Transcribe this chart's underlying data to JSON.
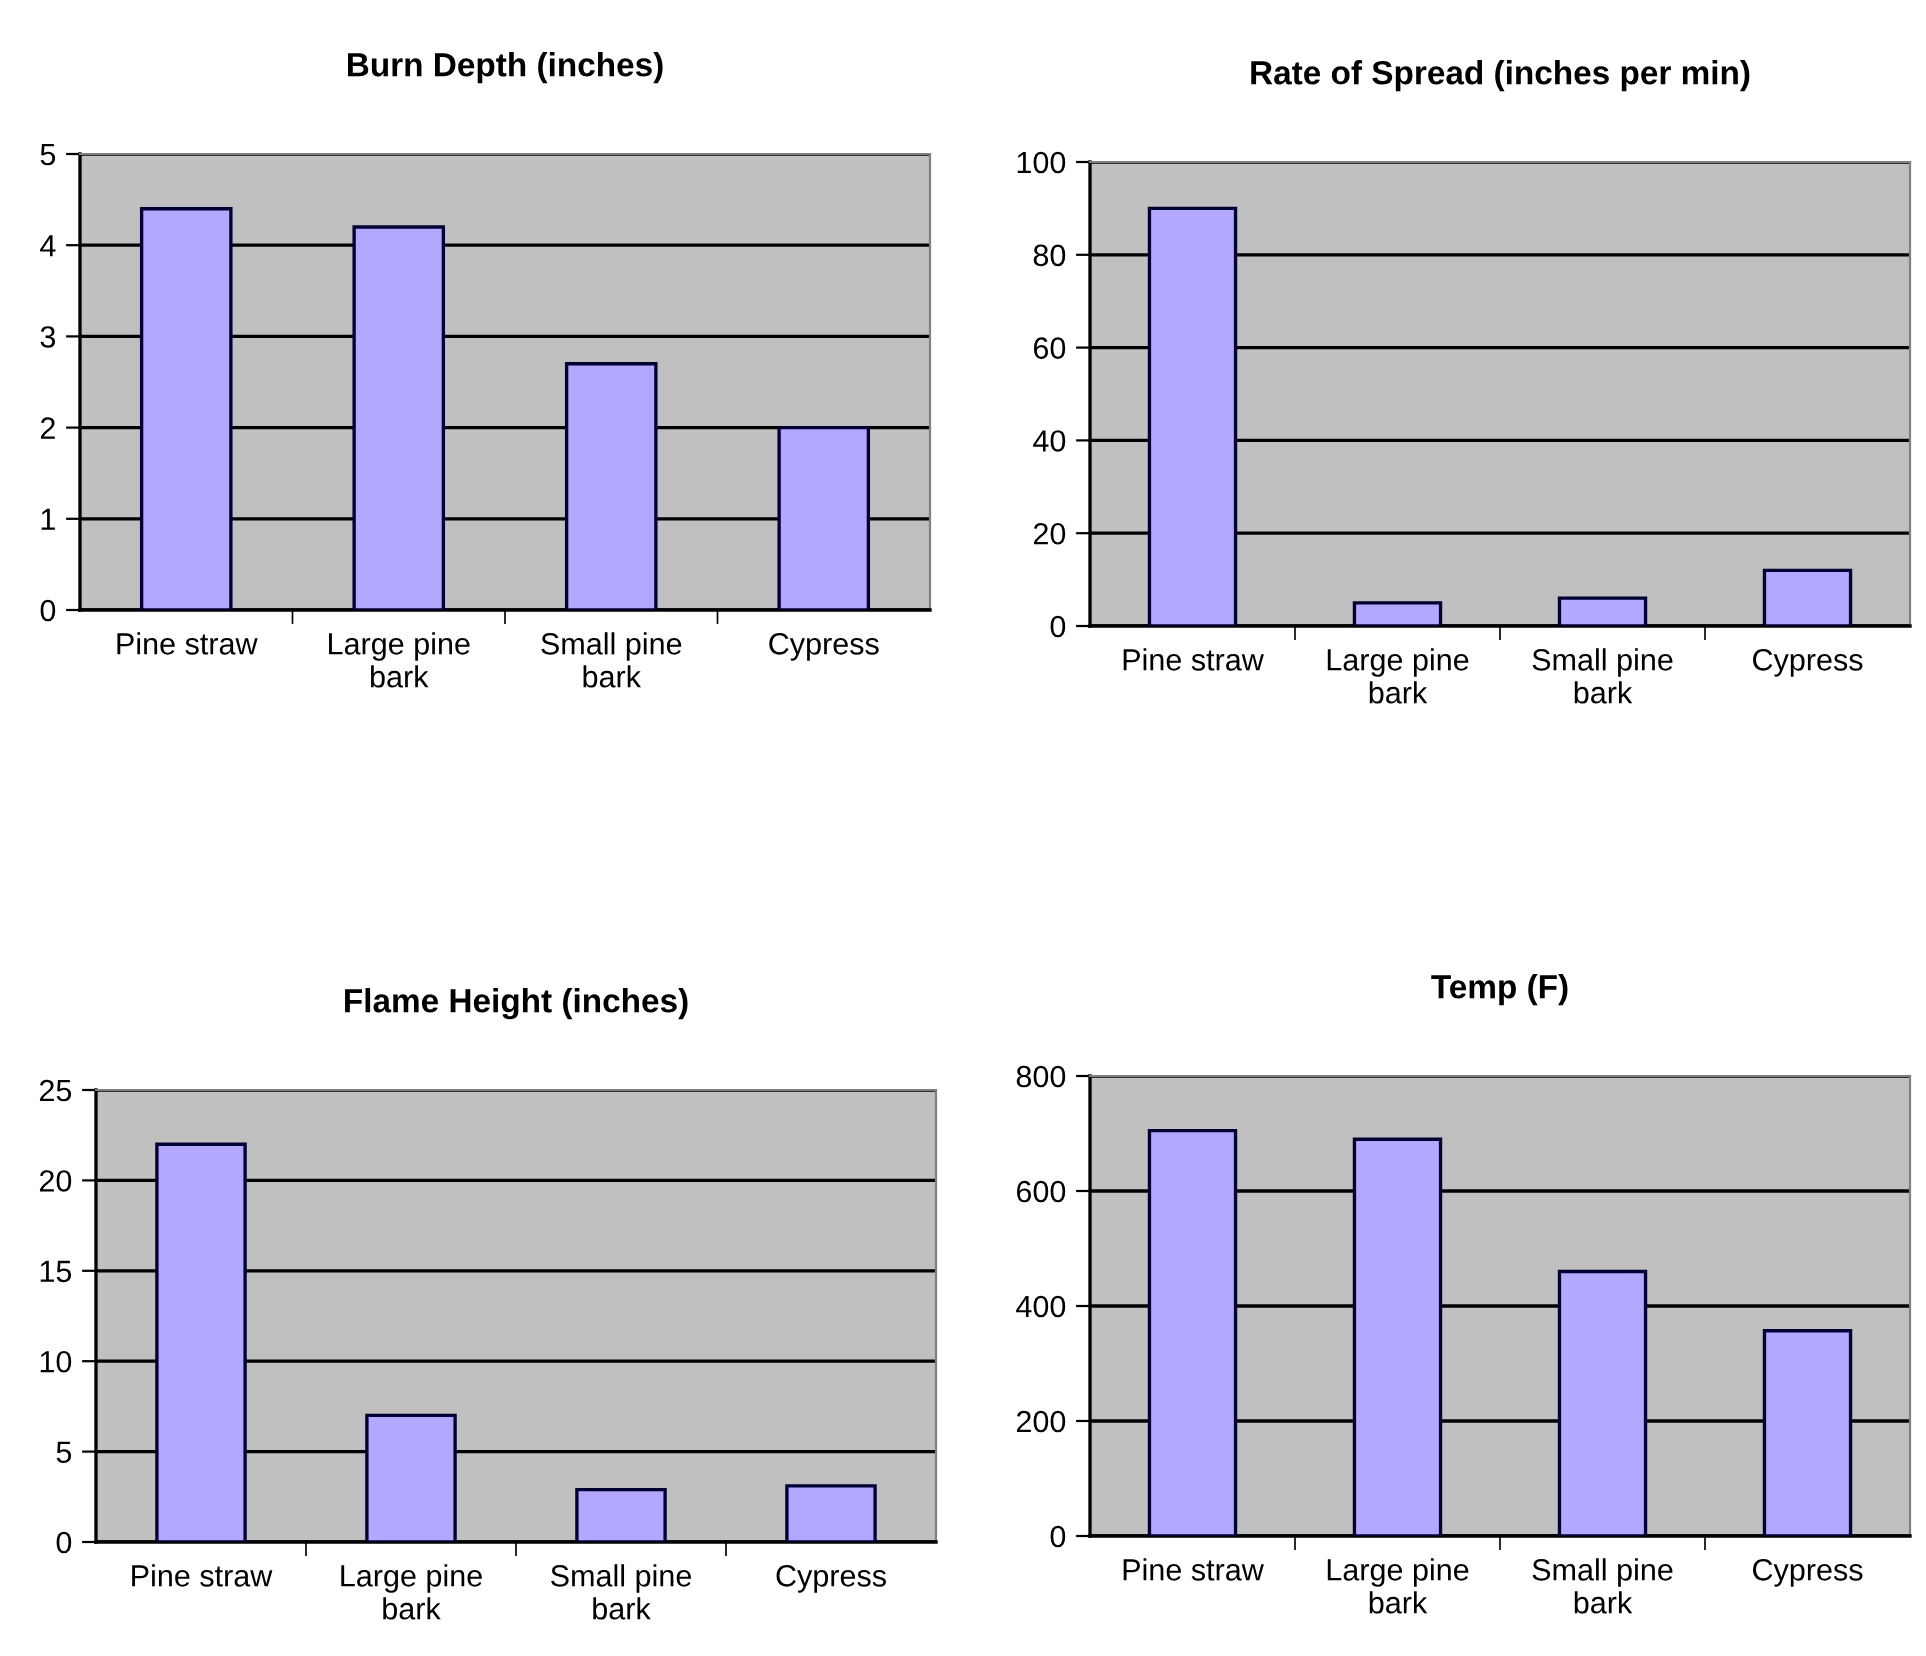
{
  "chart_data": [
    {
      "type": "bar",
      "title": "Burn Depth (inches)",
      "categories": [
        "Pine straw",
        "Large pine\nbark",
        "Small pine\nbark",
        "Cypress"
      ],
      "values": [
        4.4,
        4.2,
        2.7,
        2.0
      ],
      "color": "#b3a8ff",
      "ylim": [
        0,
        5
      ],
      "yticks": [
        0,
        1,
        2,
        3,
        4,
        5
      ],
      "grid": "y"
    },
    {
      "type": "bar",
      "title": "Rate of Spread (inches per min)",
      "categories": [
        "Pine straw",
        "Large pine\nbark",
        "Small pine\nbark",
        "Cypress"
      ],
      "values": [
        90,
        5,
        6,
        12
      ],
      "color": "#b3a8ff",
      "ylim": [
        0,
        100
      ],
      "yticks": [
        0,
        20,
        40,
        60,
        80,
        100
      ],
      "grid": "y"
    },
    {
      "type": "bar",
      "title": "Flame Height (inches)",
      "categories": [
        "Pine straw",
        "Large pine\nbark",
        "Small pine\nbark",
        "Cypress"
      ],
      "values": [
        22,
        7,
        2.9,
        3.1
      ],
      "color": "#b3a8ff",
      "ylim": [
        0,
        25
      ],
      "yticks": [
        0,
        5,
        10,
        15,
        20,
        25
      ],
      "grid": "y"
    },
    {
      "type": "bar",
      "title": "Temp (F)",
      "categories": [
        "Pine straw",
        "Large pine\nbark",
        "Small pine\nbark",
        "Cypress"
      ],
      "values": [
        705,
        690,
        460,
        357
      ],
      "color": "#b3a8ff",
      "ylim": [
        0,
        800
      ],
      "yticks": [
        0,
        200,
        400,
        600,
        800
      ],
      "grid": "y"
    }
  ]
}
